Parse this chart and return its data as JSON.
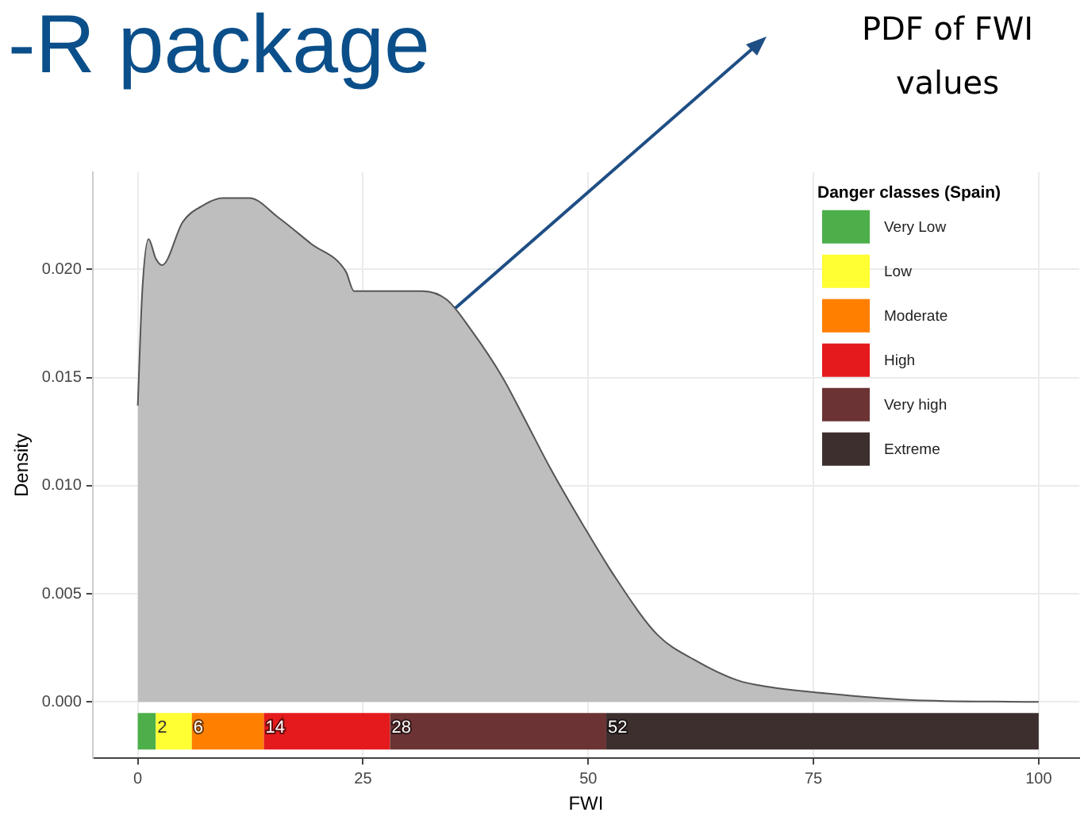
{
  "chart_data": {
    "type": "area",
    "title": "-R package",
    "xlabel": "FWI",
    "ylabel": "Density",
    "legend_title": "Danger classes (Spain)",
    "x": [
      0,
      0.5,
      1.2,
      2.0,
      2.7,
      5,
      7,
      9.4,
      12.4,
      15.6,
      19.2,
      23.1,
      24,
      27.2,
      31.6,
      34.3,
      37,
      40.5,
      42.8,
      45.8,
      49.4,
      53.1,
      57.7,
      62,
      66.6,
      70,
      76.4,
      85.6,
      100
    ],
    "series": [
      {
        "color": "#bebebe",
        "values": [
          0.0137,
          0.019,
          0.0214,
          0.0205,
          0.0202,
          0.0222,
          0.0229,
          0.0233,
          0.0233,
          0.0224,
          0.0212,
          0.0199,
          0.019,
          0.019,
          0.019,
          0.0186,
          0.0172,
          0.015,
          0.0132,
          0.0108,
          0.0082,
          0.0057,
          0.0031,
          0.0019,
          0.001,
          0.0007,
          0.0004,
          0.0001,
          0
        ]
      }
    ],
    "xlim": [
      -5,
      104.5
    ],
    "xticks": [
      0,
      25,
      50,
      75,
      100
    ],
    "ylim": [
      -0.0026,
      0.0245
    ],
    "yticks": [
      {
        "value": 0,
        "label": "0.000"
      },
      {
        "value": 0.005,
        "label": "0.005"
      },
      {
        "value": 0.01,
        "label": "0.010"
      },
      {
        "value": 0.015,
        "label": "0.015"
      },
      {
        "value": 0.02,
        "label": "0.020"
      }
    ],
    "bands": [
      {
        "axis": "x",
        "from": 0,
        "to": 2,
        "label": "Very Low",
        "color": "#4daf4a"
      },
      {
        "axis": "x",
        "from": 2,
        "to": 6,
        "label": "Low",
        "color": "#ffff33"
      },
      {
        "axis": "x",
        "from": 6,
        "to": 14,
        "label": "Moderate",
        "color": "#ff7f00"
      },
      {
        "axis": "x",
        "from": 14,
        "to": 28,
        "label": "High",
        "color": "#e41a1c"
      },
      {
        "axis": "x",
        "from": 28,
        "to": 52,
        "label": "Very high",
        "color": "#6b3333"
      },
      {
        "axis": "x",
        "from": 52,
        "to": 100,
        "label": "Extreme",
        "color": "#3e2f2f"
      }
    ],
    "annotations": [
      "PDF of FWI values",
      {
        "text": "2",
        "x": 2,
        "y": -0.0012
      },
      {
        "text": "6",
        "x": 6,
        "y": -0.0012
      },
      {
        "text": "14",
        "x": 14,
        "y": -0.0012
      },
      {
        "text": "28",
        "x": 28,
        "y": -0.0012
      },
      {
        "text": "52",
        "x": 52,
        "y": -0.0012
      }
    ],
    "grid": true,
    "legend": "top right"
  }
}
